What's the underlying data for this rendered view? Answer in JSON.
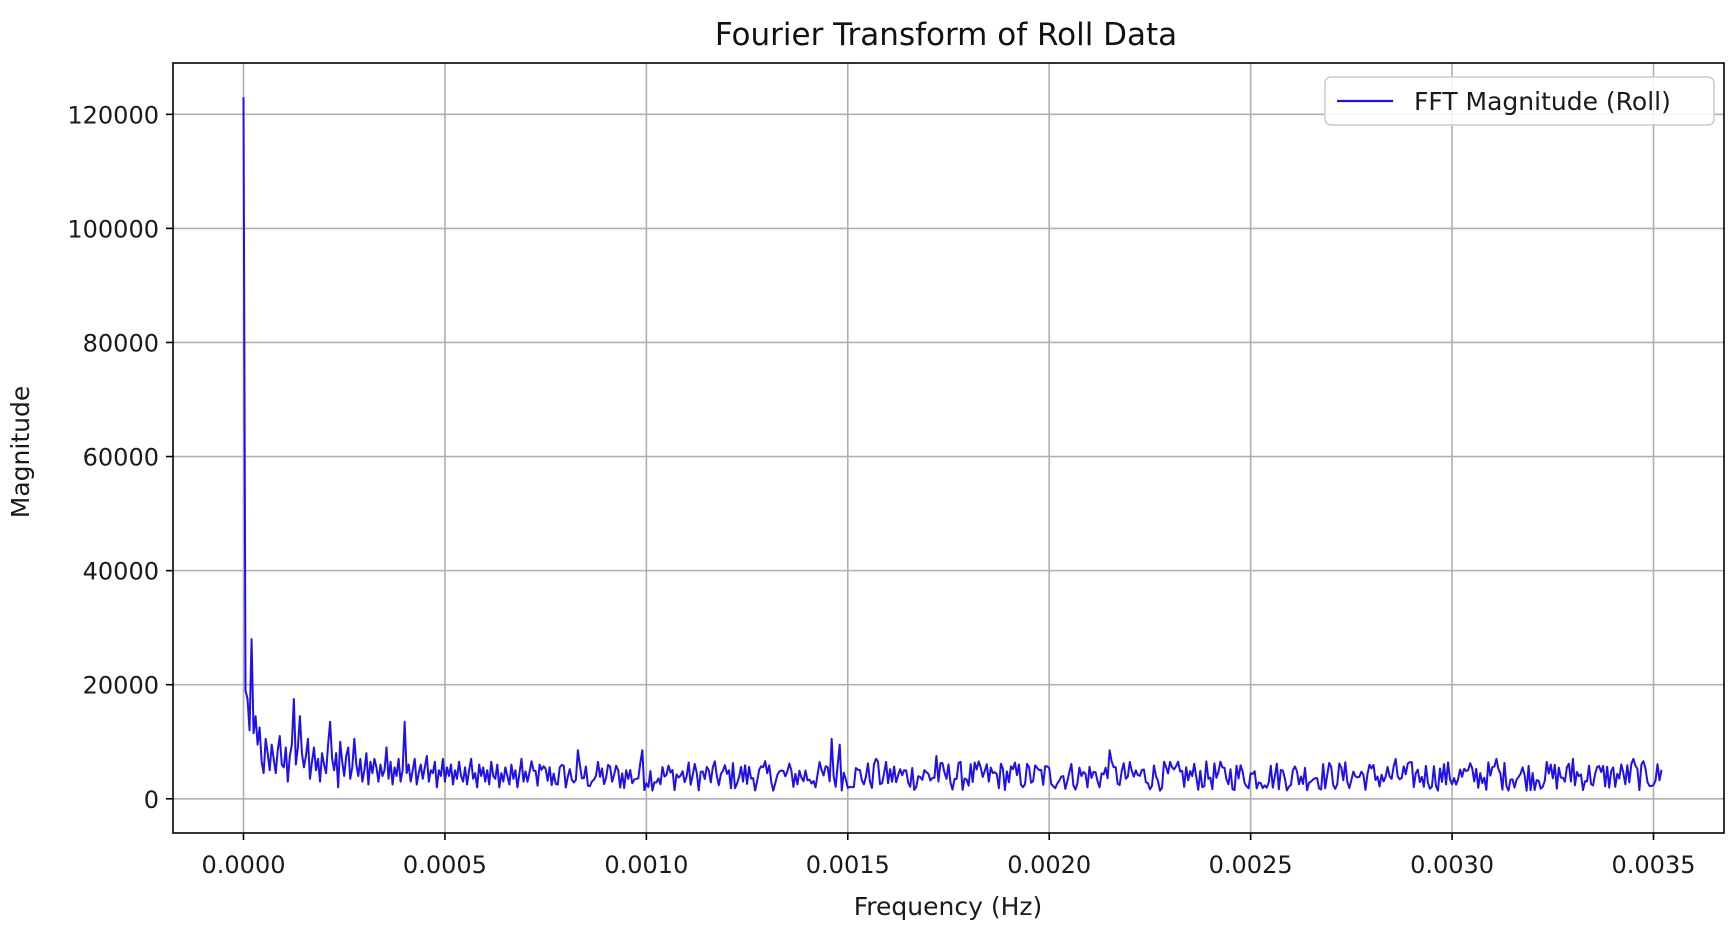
{
  "chart_data": {
    "type": "line",
    "title": "Fourier Transform of Roll Data",
    "xlabel": "Frequency (Hz)",
    "ylabel": "Magnitude",
    "xlim": [
      -0.000175,
      0.003675
    ],
    "ylim": [
      -6000,
      129000
    ],
    "x_ticks": [
      0.0,
      0.0005,
      0.001,
      0.0015,
      0.002,
      0.0025,
      0.003,
      0.0035
    ],
    "x_tick_labels": [
      "0.0000",
      "0.0005",
      "0.0010",
      "0.0015",
      "0.0020",
      "0.0025",
      "0.0030",
      "0.0035"
    ],
    "y_ticks": [
      0,
      20000,
      40000,
      60000,
      80000,
      100000,
      120000
    ],
    "y_tick_labels": [
      "0",
      "20000",
      "40000",
      "60000",
      "80000",
      "100000",
      "120000"
    ],
    "grid": true,
    "legend_position": "top-right",
    "series": [
      {
        "name": "FFT Magnitude (Roll)",
        "color": "#1f10ee",
        "x_start": 0.0,
        "x_step": 5e-06,
        "values": [
          123000,
          19000,
          17500,
          12000,
          28000,
          11500,
          14500,
          9500,
          12500,
          6500,
          4500,
          10500,
          8000,
          5000,
          9500,
          7000,
          4500,
          8500,
          11000,
          6000,
          5500,
          9000,
          3000,
          7500,
          9500,
          17500,
          6000,
          9000,
          14500,
          8000,
          5500,
          7500,
          10500,
          3500,
          6500,
          9000,
          5000,
          7000,
          3000,
          8000,
          6000,
          4500,
          9500,
          13500,
          7000,
          5000,
          8000,
          2000,
          10000,
          6500,
          4000,
          7500,
          9000,
          3500,
          5500,
          10500,
          6000,
          4000,
          7000,
          3000,
          5000,
          8000,
          2500,
          6500,
          4500,
          7000,
          5500,
          3000,
          6000,
          4000,
          5000,
          9000,
          3500,
          6500,
          2500,
          5500,
          4000,
          7000,
          3000,
          5000,
          13500,
          4500,
          6000,
          3000,
          5000,
          7000,
          2500,
          4500,
          6000,
          3500,
          5500,
          7500,
          3000,
          5000,
          4500,
          6500,
          2000,
          5000,
          4000,
          7000,
          3000,
          5500,
          4000,
          6000,
          2500,
          5000,
          3500,
          6500,
          4000,
          3000,
          5500,
          2500,
          5000,
          7000,
          3500,
          4500,
          2000,
          6000,
          4000,
          5500,
          3000,
          5000,
          2500,
          6500,
          4000,
          3500,
          6000,
          2000,
          4500,
          3000,
          5500,
          4000,
          2500,
          6000,
          3500,
          5000,
          2000,
          4500,
          7000,
          3000
        ]
      }
    ],
    "noise_region": {
      "x_from": 0.0007,
      "x_to": 0.00352,
      "x_step": 5e-06,
      "mean": 4000,
      "amplitude": 2600,
      "peaks": [
        [
          0.00083,
          8500
        ],
        [
          0.00099,
          8500
        ],
        [
          0.00146,
          10500
        ],
        [
          0.00148,
          9500
        ],
        [
          0.00157,
          7000
        ],
        [
          0.00172,
          7500
        ],
        [
          0.00215,
          8500
        ],
        [
          0.00286,
          7000
        ],
        [
          0.00311,
          7000
        ],
        [
          0.0033,
          7000
        ],
        [
          0.00345,
          7000
        ]
      ],
      "x_end_value": 0.00351
    }
  }
}
